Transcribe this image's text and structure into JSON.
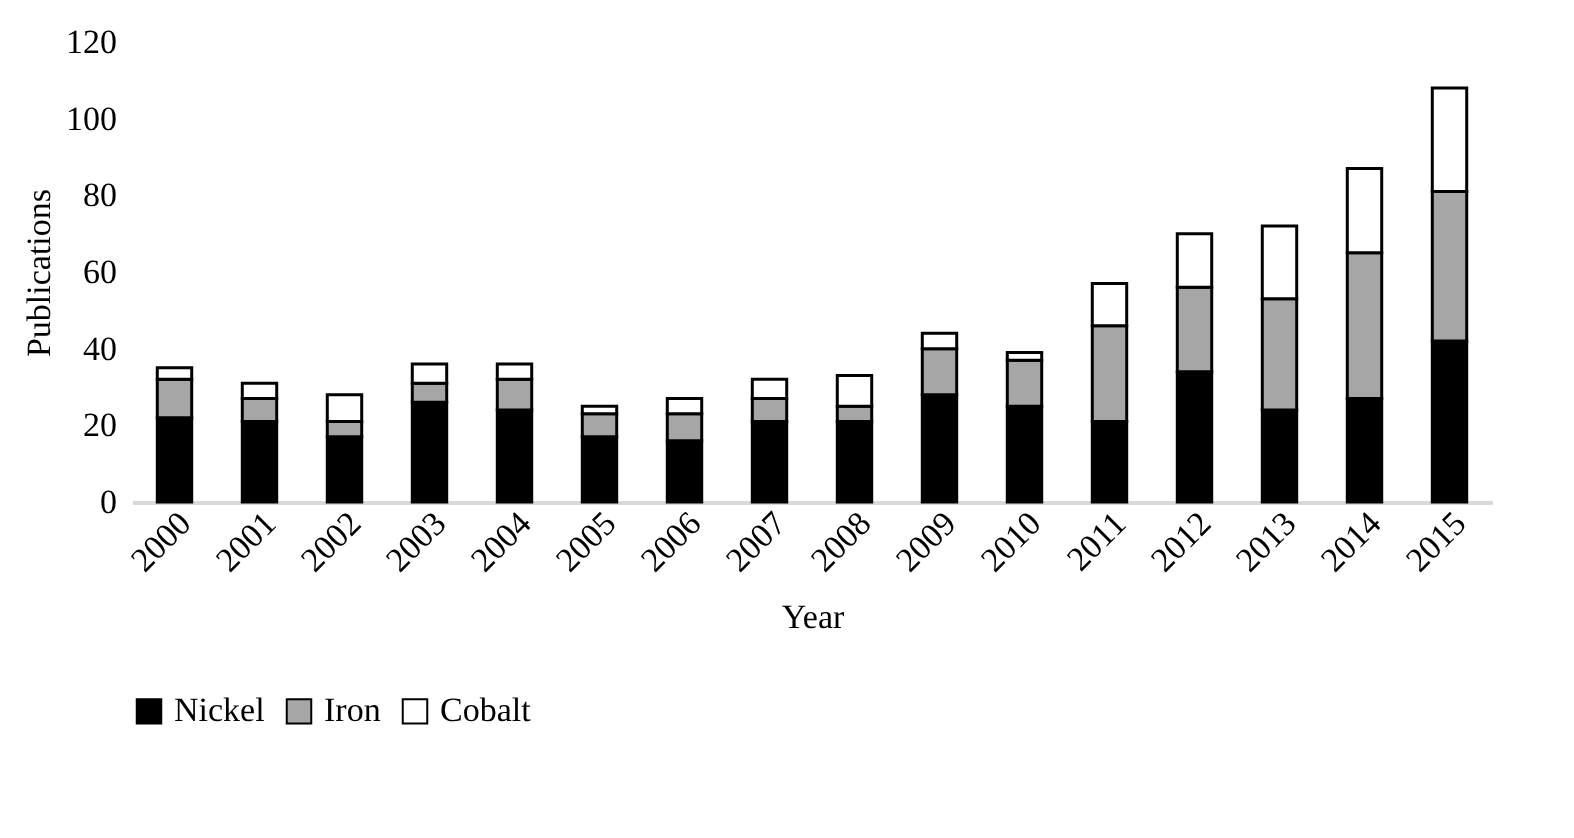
{
  "chart_data": {
    "type": "bar",
    "stacked": true,
    "xlabel": "Year",
    "ylabel": "Publications",
    "categories": [
      "2000",
      "2001",
      "2002",
      "2003",
      "2004",
      "2005",
      "2006",
      "2007",
      "2008",
      "2009",
      "2010",
      "2011",
      "2012",
      "2013",
      "2014",
      "2015"
    ],
    "series": [
      {
        "name": "Nickel",
        "color": "#000000",
        "values": [
          22,
          21,
          17,
          26,
          24,
          17,
          16,
          21,
          21,
          28,
          25,
          21,
          34,
          24,
          27,
          42
        ]
      },
      {
        "name": "Iron",
        "color": "#a6a6a6",
        "values": [
          10,
          6,
          4,
          5,
          8,
          6,
          7,
          6,
          4,
          12,
          12,
          25,
          22,
          29,
          38,
          39
        ]
      },
      {
        "name": "Cobalt",
        "color": "#ffffff",
        "values": [
          3,
          4,
          7,
          5,
          4,
          2,
          4,
          5,
          8,
          4,
          2,
          11,
          14,
          19,
          22,
          27
        ]
      }
    ],
    "ylim": [
      0,
      120
    ],
    "yticks": [
      0,
      20,
      40,
      60,
      80,
      100,
      120
    ],
    "grid": false,
    "legend": "bottom"
  }
}
